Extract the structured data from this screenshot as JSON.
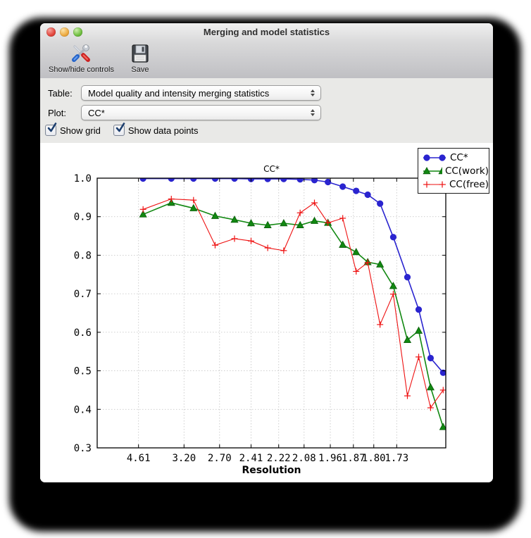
{
  "window": {
    "title": "Merging and model statistics"
  },
  "toolbar": {
    "show_hide_label": "Show/hide controls",
    "save_label": "Save"
  },
  "controls": {
    "table_label": "Table:",
    "table_value": "Model quality and intensity merging statistics",
    "plot_label": "Plot:",
    "plot_value": "CC*",
    "checkboxes": [
      {
        "label": "Show grid",
        "checked": true
      },
      {
        "label": "Show data points",
        "checked": true
      }
    ]
  },
  "chart_data": {
    "type": "line",
    "title": "CC*",
    "xlabel": "Resolution",
    "ylabel": "",
    "grid": true,
    "legend_position": "upper right",
    "x_axis_note": "x position linear in 1/d^2, d = resolution in Angstrom",
    "x_domain_inv_d2": [
      0.0011,
      0.3887
    ],
    "ylim": [
      0.3,
      1.0
    ],
    "y_ticks": [
      {
        "v": 1.0,
        "label": "1.0"
      },
      {
        "v": 0.9,
        "label": "0.9"
      },
      {
        "v": 0.8,
        "label": "0.8"
      },
      {
        "v": 0.7,
        "label": "0.7"
      },
      {
        "v": 0.6,
        "label": "0.6"
      },
      {
        "v": 0.5,
        "label": "0.5"
      },
      {
        "v": 0.4,
        "label": "0.4"
      },
      {
        "v": 0.3,
        "label": "0.3"
      }
    ],
    "x_ticks": [
      {
        "d": 4.61,
        "label": "4.61"
      },
      {
        "d": 3.2,
        "label": "3.20"
      },
      {
        "d": 2.7,
        "label": "2.70"
      },
      {
        "d": 2.41,
        "label": "2.41"
      },
      {
        "d": 2.22,
        "label": "2.22"
      },
      {
        "d": 2.08,
        "label": "2.08"
      },
      {
        "d": 1.96,
        "label": "1.96"
      },
      {
        "d": 1.87,
        "label": "1.87"
      },
      {
        "d": 1.8,
        "label": "1.80"
      },
      {
        "d": 1.73,
        "label": "1.73"
      }
    ],
    "resolution_bins_A": [
      4.38,
      3.46,
      3.04,
      2.75,
      2.55,
      2.41,
      2.29,
      2.19,
      2.1,
      2.03,
      1.97,
      1.91,
      1.86,
      1.82,
      1.78,
      1.74,
      1.7,
      1.67,
      1.64,
      1.61
    ],
    "series": [
      {
        "name": "CC*",
        "color": "#2a24cf",
        "marker": "circle",
        "line_width": 1.6,
        "values": [
          0.999,
          0.999,
          0.999,
          0.999,
          0.999,
          0.998,
          0.998,
          0.998,
          0.997,
          0.995,
          0.99,
          0.978,
          0.967,
          0.957,
          0.934,
          0.847,
          0.743,
          0.659,
          0.533,
          0.495
        ]
      },
      {
        "name": "CC(work)",
        "color": "#118811",
        "marker": "triangle",
        "line_width": 1.6,
        "values": [
          0.906,
          0.936,
          0.922,
          0.902,
          0.892,
          0.883,
          0.878,
          0.883,
          0.878,
          0.889,
          0.884,
          0.827,
          0.808,
          0.782,
          0.776,
          0.72,
          0.58,
          0.604,
          0.457,
          0.354
        ]
      },
      {
        "name": "CC(free)",
        "color": "#ee1111",
        "marker": "plus",
        "line_width": 1.1,
        "values": [
          0.919,
          0.946,
          0.943,
          0.826,
          0.843,
          0.837,
          0.819,
          0.812,
          0.91,
          0.936,
          0.884,
          0.896,
          0.758,
          0.781,
          0.62,
          0.699,
          0.435,
          0.536,
          0.404,
          0.45
        ]
      }
    ]
  }
}
